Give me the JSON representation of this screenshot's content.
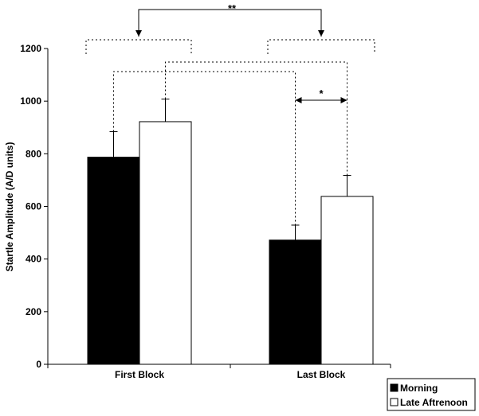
{
  "chart_data": {
    "type": "bar",
    "categories": [
      "First Block",
      "Last Block"
    ],
    "series": [
      {
        "name": "Morning",
        "values": [
          787,
          472
        ],
        "errors": [
          97,
          57
        ],
        "color": "#000000"
      },
      {
        "name": "Late Aftrenoon",
        "values": [
          922,
          638
        ],
        "errors": [
          86,
          80
        ],
        "color": "#ffffff"
      }
    ],
    "ylabel": "Startle Amplitude (A/D units)",
    "ylim": [
      0,
      1200
    ],
    "yticks": [
      0,
      200,
      400,
      600,
      800,
      1000,
      1200
    ],
    "grid": false,
    "legend_position": "bottom-right",
    "significance": [
      {
        "label": "**",
        "between": "First Block vs Last Block"
      },
      {
        "label": "*",
        "between": "Last Block: Morning vs Late Aftrenoon"
      }
    ]
  }
}
